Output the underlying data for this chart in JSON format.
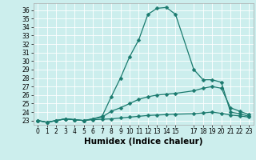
{
  "xlabel": "Humidex (Indice chaleur)",
  "background_color": "#cceeed",
  "line_color": "#1a7a6e",
  "grid_color": "#ffffff",
  "ylim": [
    22.5,
    36.8
  ],
  "xlim": [
    -0.5,
    23.5
  ],
  "yticks": [
    23,
    24,
    25,
    26,
    27,
    28,
    29,
    30,
    31,
    32,
    33,
    34,
    35,
    36
  ],
  "xticks": [
    0,
    1,
    2,
    3,
    4,
    5,
    6,
    7,
    8,
    9,
    10,
    11,
    12,
    13,
    14,
    15,
    17,
    18,
    19,
    20,
    21,
    22,
    23
  ],
  "line1_x": [
    0,
    1,
    2,
    3,
    4,
    5,
    6,
    7,
    8,
    9,
    10,
    11,
    12,
    13,
    14,
    15,
    17,
    18,
    19,
    20,
    21,
    22,
    23
  ],
  "line1_y": [
    23.0,
    22.8,
    23.0,
    23.2,
    23.1,
    23.0,
    23.1,
    23.15,
    23.2,
    23.3,
    23.4,
    23.5,
    23.6,
    23.65,
    23.7,
    23.75,
    23.8,
    23.9,
    24.0,
    23.85,
    23.65,
    23.55,
    23.4
  ],
  "line2_x": [
    0,
    1,
    2,
    3,
    4,
    5,
    6,
    7,
    8,
    9,
    10,
    11,
    12,
    13,
    14,
    15,
    17,
    18,
    19,
    20,
    21,
    22,
    23
  ],
  "line2_y": [
    23.0,
    22.8,
    23.0,
    23.2,
    23.1,
    23.0,
    23.2,
    23.4,
    24.1,
    24.5,
    25.0,
    25.5,
    25.8,
    26.0,
    26.1,
    26.2,
    26.5,
    26.8,
    27.0,
    26.8,
    24.5,
    24.1,
    23.7
  ],
  "line3_x": [
    0,
    1,
    2,
    3,
    4,
    5,
    6,
    7,
    8,
    9,
    10,
    11,
    12,
    13,
    14,
    15,
    17,
    18,
    19,
    20,
    21,
    22,
    23
  ],
  "line3_y": [
    23.0,
    22.8,
    23.0,
    23.2,
    23.1,
    23.0,
    23.2,
    23.5,
    25.8,
    28.0,
    30.5,
    32.5,
    35.5,
    36.2,
    36.3,
    35.5,
    29.0,
    27.8,
    27.8,
    27.5,
    24.0,
    23.8,
    23.5
  ],
  "marker_size": 2.5,
  "linewidth": 0.9,
  "tick_fontsize": 5.5,
  "label_fontsize": 7.5
}
